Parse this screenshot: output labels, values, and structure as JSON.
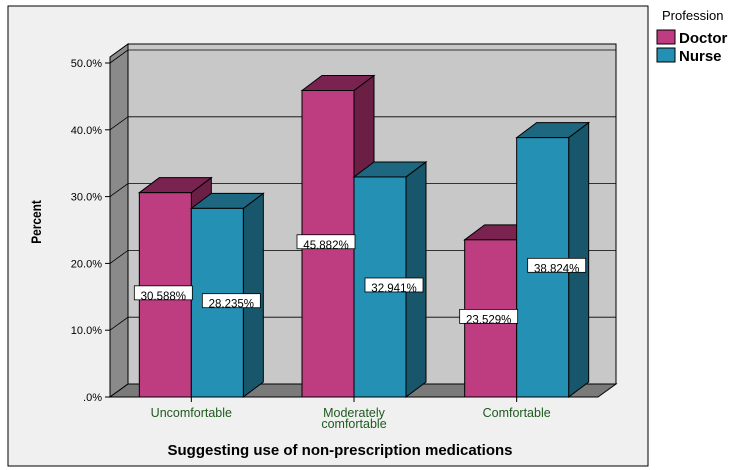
{
  "chart_data": {
    "type": "bar",
    "title": "",
    "xlabel": "Suggesting use of non-prescription medications",
    "ylabel": "Percent",
    "categories": [
      {
        "lines": [
          "Uncomfortable"
        ]
      },
      {
        "lines": [
          "Moderately",
          "comfortable"
        ]
      },
      {
        "lines": [
          "Comfortable"
        ]
      }
    ],
    "series": [
      {
        "name": "Doctor",
        "values": [
          30.588,
          45.882,
          23.529
        ],
        "labels": [
          "30.588%",
          "45.882%",
          "23.529%"
        ],
        "color": "#BE3C80",
        "top_color": "#7B2350",
        "side_color": "#6B1F45"
      },
      {
        "name": "Nurse",
        "values": [
          28.235,
          32.941,
          38.824
        ],
        "labels": [
          "28.235%",
          "32.941%",
          "38.824%"
        ],
        "color": "#2490B4",
        "top_color": "#1D6780",
        "side_color": "#18566B"
      }
    ],
    "ylim": [
      0,
      50
    ],
    "yticks": [
      0,
      10,
      20,
      30,
      40,
      50
    ],
    "ytick_labels": [
      ".0%",
      "10.0%",
      "20.0%",
      "30.0%",
      "40.0%",
      "50.0%"
    ],
    "grid": true,
    "style": "3d",
    "legend": {
      "title": "Profession",
      "placement": "top-right"
    },
    "colors": {
      "plot_background": "#C8C8C8",
      "page_background": "#F0F0F0",
      "category_label": "#1E5A1E"
    }
  }
}
